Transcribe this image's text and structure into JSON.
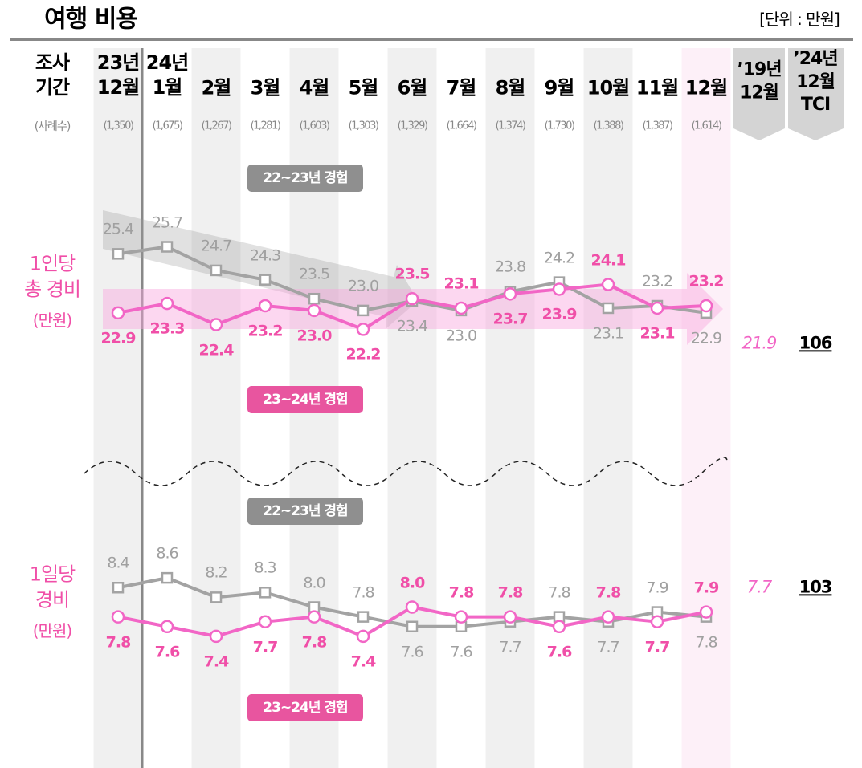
{
  "header": {
    "title": "여행 비용",
    "unit": "[단위 : 만원]"
  },
  "columns": {
    "label": "조사\n기간",
    "categories": [
      "23년\n12월",
      "24년\n1월",
      "2월",
      "3월",
      "4월",
      "5월",
      "6월",
      "7월",
      "8월",
      "9월",
      "10월",
      "11월",
      "12월"
    ],
    "sample_label": "(사례수)",
    "samples": [
      "(1,350)",
      "(1,675)",
      "(1,267)",
      "(1,281)",
      "(1,603)",
      "(1,303)",
      "(1,329)",
      "(1,664)",
      "(1,374)",
      "(1,730)",
      "(1,388)",
      "(1,387)",
      "(1,614)"
    ],
    "extra": [
      "’19년\n12월",
      "’24년\n12월\nTCI"
    ]
  },
  "chart_data": [
    {
      "type": "line",
      "label": "1인당\n총 경비",
      "unit_label": "(만원)",
      "ylim": [
        21.5,
        26.5
      ],
      "series": [
        {
          "name": "22~23년 경험",
          "color": "#a3a3a3",
          "values": [
            25.4,
            25.7,
            24.7,
            24.3,
            23.5,
            23.0,
            23.4,
            23.0,
            23.8,
            24.2,
            23.1,
            23.2,
            22.9
          ],
          "value_labels": [
            "25.4",
            "25.7",
            "24.7",
            "24.3",
            "23.5",
            "23.0",
            "23.4",
            "23.0",
            "23.8",
            "24.2",
            "23.1",
            "23.2",
            "22.9"
          ]
        },
        {
          "name": "23~24년 경험",
          "color": "#f266c6",
          "values": [
            22.9,
            23.3,
            22.4,
            23.2,
            23.0,
            22.2,
            23.5,
            23.1,
            23.7,
            23.9,
            24.1,
            23.1,
            23.2
          ],
          "value_labels": [
            "22.9",
            "23.3",
            "22.4",
            "23.2",
            "23.0",
            "22.2",
            "23.5",
            "23.1",
            "23.7",
            "23.9",
            "24.1",
            "23.1",
            "23.2"
          ]
        }
      ],
      "ref_2019": 21.9,
      "tci": 106
    },
    {
      "type": "line",
      "label": "1일당\n경비",
      "unit_label": "(만원)",
      "ylim": [
        7.2,
        8.8
      ],
      "series": [
        {
          "name": "22~23년 경험",
          "color": "#a3a3a3",
          "values": [
            8.4,
            8.6,
            8.2,
            8.3,
            8.0,
            7.8,
            7.6,
            7.6,
            7.7,
            7.8,
            7.7,
            7.9,
            7.8
          ],
          "value_labels": [
            "8.4",
            "8.6",
            "8.2",
            "8.3",
            "8.0",
            "7.8",
            "7.6",
            "7.6",
            "7.7",
            "7.8",
            "7.7",
            "7.9",
            "7.8"
          ]
        },
        {
          "name": "23~24년 경험",
          "color": "#f266c6",
          "values": [
            7.8,
            7.6,
            7.4,
            7.7,
            7.8,
            7.4,
            8.0,
            7.8,
            7.8,
            7.6,
            7.8,
            7.7,
            7.9
          ],
          "value_labels": [
            "7.8",
            "7.6",
            "7.4",
            "7.7",
            "7.8",
            "7.4",
            "8.0",
            "7.8",
            "7.8",
            "7.6",
            "7.8",
            "7.7",
            "7.9"
          ]
        }
      ],
      "ref_2019": 7.7,
      "tci": 103
    }
  ]
}
